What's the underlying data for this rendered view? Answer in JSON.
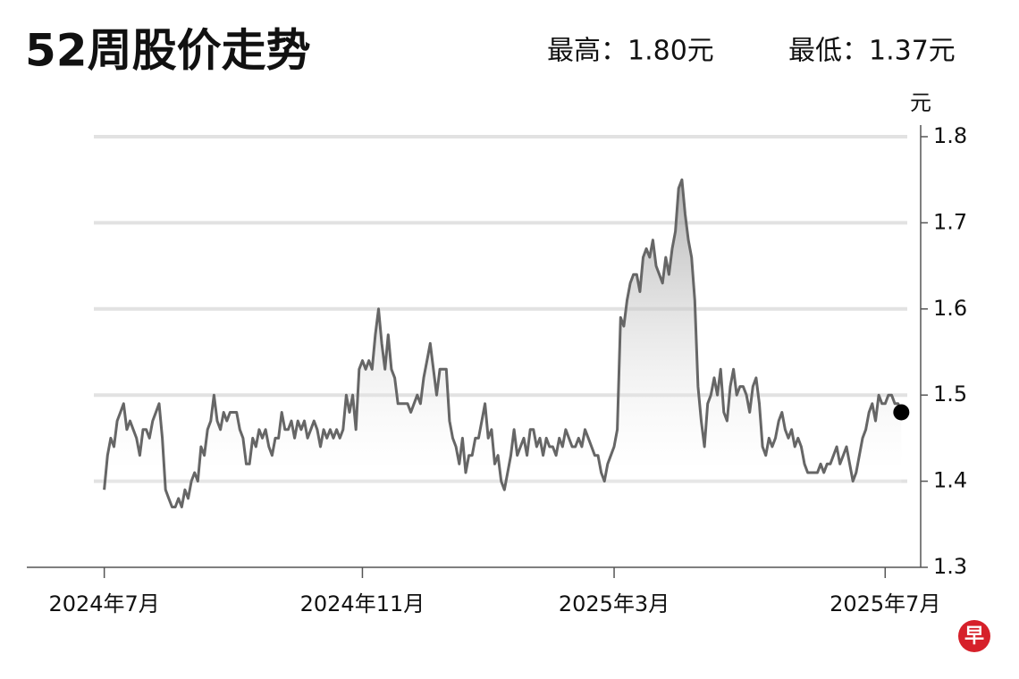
{
  "chart_data": {
    "type": "line",
    "title": "52周股价走势",
    "high_label": "最高：1.80元",
    "low_label": "最低：1.37元",
    "y_unit": "元",
    "logo": "早",
    "color": "#666666",
    "grid": true,
    "values": [
      1.39,
      1.43,
      1.45,
      1.44,
      1.47,
      1.48,
      1.49,
      1.46,
      1.47,
      1.46,
      1.45,
      1.43,
      1.46,
      1.46,
      1.45,
      1.47,
      1.48,
      1.49,
      1.45,
      1.39,
      1.38,
      1.37,
      1.37,
      1.38,
      1.37,
      1.39,
      1.38,
      1.4,
      1.41,
      1.4,
      1.44,
      1.43,
      1.46,
      1.47,
      1.5,
      1.47,
      1.46,
      1.48,
      1.47,
      1.48,
      1.48,
      1.48,
      1.46,
      1.45,
      1.42,
      1.42,
      1.45,
      1.44,
      1.46,
      1.45,
      1.46,
      1.44,
      1.43,
      1.45,
      1.45,
      1.48,
      1.46,
      1.46,
      1.47,
      1.45,
      1.47,
      1.46,
      1.47,
      1.45,
      1.46,
      1.47,
      1.46,
      1.44,
      1.46,
      1.45,
      1.46,
      1.45,
      1.46,
      1.45,
      1.46,
      1.5,
      1.48,
      1.5,
      1.46,
      1.53,
      1.54,
      1.53,
      1.54,
      1.53,
      1.57,
      1.6,
      1.56,
      1.53,
      1.57,
      1.53,
      1.52,
      1.49,
      1.49,
      1.49,
      1.49,
      1.48,
      1.49,
      1.5,
      1.49,
      1.52,
      1.54,
      1.56,
      1.53,
      1.5,
      1.53,
      1.53,
      1.53,
      1.47,
      1.45,
      1.44,
      1.42,
      1.45,
      1.41,
      1.43,
      1.43,
      1.45,
      1.45,
      1.47,
      1.49,
      1.45,
      1.46,
      1.42,
      1.43,
      1.4,
      1.39,
      1.41,
      1.43,
      1.46,
      1.43,
      1.44,
      1.45,
      1.43,
      1.46,
      1.46,
      1.44,
      1.45,
      1.43,
      1.45,
      1.44,
      1.44,
      1.43,
      1.45,
      1.44,
      1.46,
      1.45,
      1.44,
      1.44,
      1.45,
      1.44,
      1.46,
      1.45,
      1.44,
      1.43,
      1.43,
      1.41,
      1.4,
      1.42,
      1.43,
      1.44,
      1.46,
      1.59,
      1.58,
      1.61,
      1.63,
      1.64,
      1.64,
      1.62,
      1.66,
      1.67,
      1.66,
      1.68,
      1.65,
      1.64,
      1.63,
      1.66,
      1.64,
      1.67,
      1.69,
      1.74,
      1.75,
      1.71,
      1.68,
      1.66,
      1.61,
      1.51,
      1.47,
      1.44,
      1.49,
      1.5,
      1.52,
      1.5,
      1.53,
      1.48,
      1.47,
      1.51,
      1.53,
      1.5,
      1.51,
      1.51,
      1.5,
      1.48,
      1.51,
      1.52,
      1.49,
      1.44,
      1.43,
      1.45,
      1.44,
      1.45,
      1.47,
      1.48,
      1.46,
      1.45,
      1.46,
      1.44,
      1.45,
      1.44,
      1.42,
      1.41,
      1.41,
      1.41,
      1.41,
      1.42,
      1.41,
      1.42,
      1.42,
      1.43,
      1.44,
      1.42,
      1.43,
      1.44,
      1.42,
      1.4,
      1.41,
      1.43,
      1.45,
      1.46,
      1.48,
      1.49,
      1.47,
      1.5,
      1.49,
      1.49,
      1.5,
      1.5,
      1.49,
      1.49,
      1.48
    ],
    "xlim": [
      -24,
      253
    ],
    "xticks": [
      {
        "value": 0,
        "label": "2024年7月"
      },
      {
        "value": 80,
        "label": "2024年11月"
      },
      {
        "value": 158,
        "label": "2025年3月"
      },
      {
        "value": 242,
        "label": "2025年7月"
      }
    ],
    "ylim": [
      1.3,
      1.8
    ],
    "yticks": [
      1.3,
      1.4,
      1.5,
      1.6,
      1.7,
      1.8
    ]
  }
}
